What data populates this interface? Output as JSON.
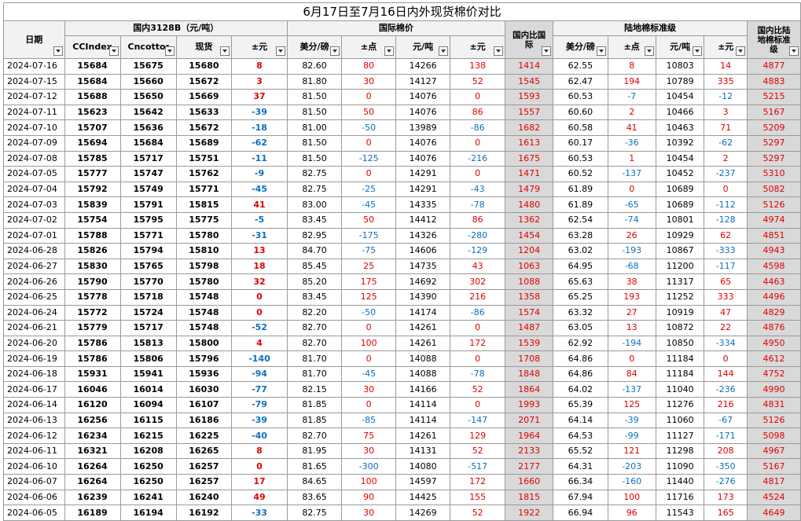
{
  "title": "6月17日至7月16日内外现货棉价对比",
  "groups": {
    "domestic": "国内3128B（元/吨）",
    "intl": "国际棉价",
    "intl_compare": "国内比国际",
    "inland": "陆地棉标准级",
    "inland_compare": "国内比陆地棉标准级"
  },
  "headers": {
    "date": "日期",
    "ccindex": "CCIndex",
    "cncotton": "Cncotton",
    "spot": "现货",
    "chg": "±元",
    "usd_cents": "美分/磅",
    "chg_pts": "±点",
    "yuan_ton": "元/吨",
    "chg_yuan": "±元",
    "inland_usd": "美分/磅",
    "inland_chg_pts": "±点",
    "inland_yuan": "元/吨",
    "inland_chg_yuan": "±元"
  },
  "rows": [
    [
      "2024-07-16",
      "15684",
      "15675",
      "15680",
      "8",
      "82.60",
      "80",
      "14266",
      "138",
      "1414",
      "62.55",
      "8",
      "10803",
      "14",
      "4877"
    ],
    [
      "2024-07-15",
      "15684",
      "15660",
      "15672",
      "3",
      "81.80",
      "30",
      "14127",
      "52",
      "1545",
      "62.47",
      "194",
      "10789",
      "335",
      "4883"
    ],
    [
      "2024-07-12",
      "15688",
      "15650",
      "15669",
      "37",
      "81.50",
      "0",
      "14076",
      "0",
      "1593",
      "60.53",
      "-7",
      "10454",
      "-12",
      "5215"
    ],
    [
      "2024-07-11",
      "15623",
      "15642",
      "15633",
      "-39",
      "81.50",
      "50",
      "14076",
      "86",
      "1557",
      "60.60",
      "2",
      "10466",
      "3",
      "5167"
    ],
    [
      "2024-07-10",
      "15707",
      "15636",
      "15672",
      "-18",
      "81.00",
      "-50",
      "13989",
      "-86",
      "1682",
      "60.58",
      "41",
      "10463",
      "71",
      "5209"
    ],
    [
      "2024-07-09",
      "15694",
      "15684",
      "15689",
      "-62",
      "81.50",
      "0",
      "14076",
      "0",
      "1613",
      "60.17",
      "-36",
      "10392",
      "-62",
      "5297"
    ],
    [
      "2024-07-08",
      "15785",
      "15717",
      "15751",
      "-11",
      "81.50",
      "-125",
      "14076",
      "-216",
      "1675",
      "60.53",
      "1",
      "10454",
      "2",
      "5297"
    ],
    [
      "2024-07-05",
      "15777",
      "15747",
      "15762",
      "-9",
      "82.75",
      "0",
      "14291",
      "0",
      "1471",
      "60.52",
      "-137",
      "10452",
      "-237",
      "5310"
    ],
    [
      "2024-07-04",
      "15792",
      "15749",
      "15771",
      "-45",
      "82.75",
      "-25",
      "14291",
      "-43",
      "1479",
      "61.89",
      "0",
      "10689",
      "0",
      "5082"
    ],
    [
      "2024-07-03",
      "15839",
      "15791",
      "15815",
      "41",
      "83.00",
      "-45",
      "14335",
      "-78",
      "1480",
      "61.89",
      "-65",
      "10689",
      "-112",
      "5126"
    ],
    [
      "2024-07-02",
      "15754",
      "15795",
      "15775",
      "-5",
      "83.45",
      "50",
      "14412",
      "86",
      "1362",
      "62.54",
      "-74",
      "10801",
      "-128",
      "4974"
    ],
    [
      "2024-07-01",
      "15788",
      "15771",
      "15780",
      "-31",
      "82.95",
      "-175",
      "14326",
      "-280",
      "1454",
      "63.28",
      "26",
      "10929",
      "62",
      "4851"
    ],
    [
      "2024-06-28",
      "15826",
      "15794",
      "15810",
      "13",
      "84.70",
      "-75",
      "14606",
      "-129",
      "1204",
      "63.02",
      "-193",
      "10867",
      "-333",
      "4943"
    ],
    [
      "2024-06-27",
      "15830",
      "15765",
      "15798",
      "18",
      "85.45",
      "25",
      "14735",
      "43",
      "1063",
      "64.95",
      "-68",
      "11200",
      "-117",
      "4598"
    ],
    [
      "2024-06-26",
      "15790",
      "15770",
      "15780",
      "32",
      "85.20",
      "175",
      "14692",
      "302",
      "1088",
      "65.63",
      "38",
      "11317",
      "65",
      "4463"
    ],
    [
      "2024-06-25",
      "15778",
      "15718",
      "15748",
      "0",
      "83.45",
      "125",
      "14390",
      "216",
      "1358",
      "65.25",
      "193",
      "11252",
      "333",
      "4496"
    ],
    [
      "2024-06-24",
      "15772",
      "15724",
      "15748",
      "0",
      "82.20",
      "-50",
      "14174",
      "-86",
      "1574",
      "63.32",
      "27",
      "10919",
      "47",
      "4829"
    ],
    [
      "2024-06-21",
      "15779",
      "15717",
      "15748",
      "-52",
      "82.70",
      "0",
      "14261",
      "0",
      "1487",
      "63.05",
      "13",
      "10872",
      "22",
      "4876"
    ],
    [
      "2024-06-20",
      "15786",
      "15813",
      "15800",
      "4",
      "82.70",
      "100",
      "14261",
      "172",
      "1539",
      "62.92",
      "-194",
      "10850",
      "-334",
      "4950"
    ],
    [
      "2024-06-19",
      "15786",
      "15806",
      "15796",
      "-140",
      "81.70",
      "0",
      "14088",
      "0",
      "1708",
      "64.86",
      "0",
      "11184",
      "0",
      "4612"
    ],
    [
      "2024-06-18",
      "15931",
      "15941",
      "15936",
      "-94",
      "81.70",
      "-45",
      "14088",
      "-78",
      "1848",
      "64.86",
      "84",
      "11184",
      "144",
      "4752"
    ],
    [
      "2024-06-17",
      "16046",
      "16014",
      "16030",
      "-77",
      "82.15",
      "30",
      "14166",
      "52",
      "1864",
      "64.02",
      "-137",
      "11040",
      "-236",
      "4990"
    ],
    [
      "2024-06-14",
      "16120",
      "16094",
      "16107",
      "-79",
      "81.85",
      "0",
      "14114",
      "0",
      "1993",
      "65.39",
      "125",
      "11276",
      "216",
      "4831"
    ],
    [
      "2024-06-13",
      "16256",
      "16115",
      "16186",
      "-39",
      "81.85",
      "-85",
      "14114",
      "-147",
      "2071",
      "64.14",
      "-39",
      "11060",
      "-67",
      "5126"
    ],
    [
      "2024-06-12",
      "16234",
      "16215",
      "16225",
      "-40",
      "82.70",
      "75",
      "14261",
      "129",
      "1964",
      "64.53",
      "-99",
      "11127",
      "-171",
      "5098"
    ],
    [
      "2024-06-11",
      "16321",
      "16208",
      "16265",
      "8",
      "81.95",
      "30",
      "14131",
      "52",
      "2133",
      "65.52",
      "121",
      "11298",
      "208",
      "4967"
    ],
    [
      "2024-06-10",
      "16264",
      "16250",
      "16257",
      "0",
      "81.65",
      "-300",
      "14080",
      "-517",
      "2177",
      "64.31",
      "-203",
      "11090",
      "-350",
      "5167"
    ],
    [
      "2024-06-07",
      "16264",
      "16250",
      "16257",
      "17",
      "84.65",
      "100",
      "14597",
      "172",
      "1660",
      "66.34",
      "-160",
      "11440",
      "-276",
      "4817"
    ],
    [
      "2024-06-06",
      "16239",
      "16241",
      "16240",
      "49",
      "83.65",
      "90",
      "14425",
      "155",
      "1815",
      "67.94",
      "100",
      "11716",
      "173",
      "4524"
    ],
    [
      "2024-06-05",
      "16189",
      "16194",
      "16192",
      "-33",
      "82.75",
      "30",
      "14269",
      "52",
      "1922",
      "66.94",
      "96",
      "11543",
      "165",
      "4649"
    ]
  ]
}
